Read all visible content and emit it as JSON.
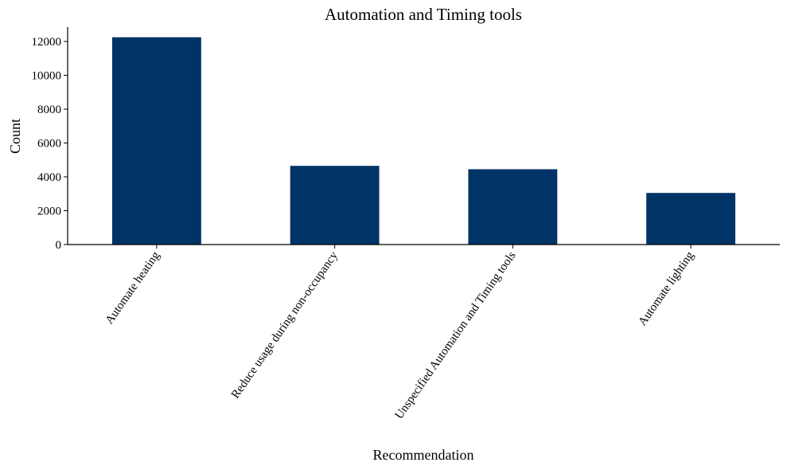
{
  "chart_data": {
    "type": "bar",
    "title": "Automation and Timing tools",
    "xlabel": "Recommendation",
    "ylabel": "Count",
    "categories": [
      "Automate heating",
      "Reduce usage during non-occupancy",
      "Unspecified Automation and Timing tools",
      "Automate lighting"
    ],
    "values": [
      12250,
      4650,
      4450,
      3050
    ],
    "ylim": [
      0,
      12850
    ],
    "yticks": [
      0,
      2000,
      4000,
      6000,
      8000,
      10000,
      12000
    ],
    "bar_color": "#003366",
    "grid": false,
    "legend": "none"
  }
}
